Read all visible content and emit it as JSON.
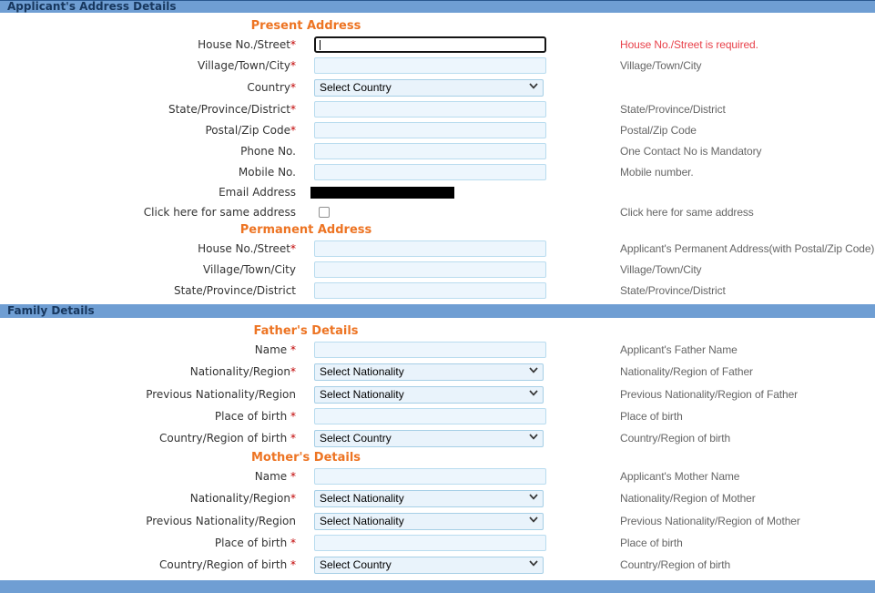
{
  "colors": {
    "section_bar_bg": "#6f9ed3",
    "section_bar_text": "#17375e",
    "sub_heading_orange": "#ed7423",
    "required_star": "#c00000",
    "error_red": "#e8414a",
    "hint_gray": "#666666",
    "input_bg": "#edf6fd",
    "input_border": "#b9dcef"
  },
  "blocks": [
    {
      "kind": "bar",
      "name": "section-bar-address-details",
      "text": "Applicant's Address Details"
    },
    {
      "kind": "heading",
      "name": "present-address-heading",
      "text": "Present Address"
    },
    {
      "kind": "row",
      "name": "house-street",
      "label": "House No./Street",
      "star": "*",
      "control": "text",
      "focused": true,
      "value": "",
      "hint": "House No./Street is required.",
      "hintError": true
    },
    {
      "kind": "row",
      "name": "village-town-city",
      "label": "Village/Town/City",
      "star": "*",
      "control": "text",
      "value": "",
      "hint": "Village/Town/City"
    },
    {
      "kind": "row",
      "name": "country",
      "label": "Country",
      "star": "*",
      "control": "select",
      "value": "Select Country",
      "hint": ""
    },
    {
      "kind": "row",
      "name": "state-province-district",
      "label": "State/Province/District",
      "star": "*",
      "control": "text",
      "value": "",
      "hint": "State/Province/District"
    },
    {
      "kind": "row",
      "name": "postal-zip-code",
      "label": "Postal/Zip Code",
      "star": "*",
      "control": "text",
      "value": "",
      "hint": "Postal/Zip Code"
    },
    {
      "kind": "row",
      "name": "phone-no",
      "label": "Phone No.",
      "star": "",
      "control": "text",
      "value": "",
      "hint": "One Contact No is Mandatory"
    },
    {
      "kind": "row",
      "name": "mobile-no",
      "label": "Mobile No.",
      "star": "",
      "control": "text",
      "value": "",
      "hint": "Mobile number."
    },
    {
      "kind": "row",
      "name": "email-address",
      "label": "Email Address",
      "star": "",
      "control": "redacted",
      "hint": ""
    },
    {
      "kind": "row",
      "name": "same-address",
      "label": "Click here for same address",
      "star": "",
      "control": "checkbox",
      "hint": "Click here for same address"
    },
    {
      "kind": "heading",
      "name": "permanent-address-heading",
      "text": "Permanent Address"
    },
    {
      "kind": "row",
      "name": "perm-house-street",
      "label": "House No./Street",
      "star": "*",
      "control": "text",
      "value": "",
      "hint": "Applicant's Permanent Address(with Postal/Zip Code)"
    },
    {
      "kind": "row",
      "name": "perm-village-town-city",
      "label": "Village/Town/City",
      "star": "",
      "control": "text",
      "value": "",
      "hint": "Village/Town/City"
    },
    {
      "kind": "row",
      "name": "perm-state-province-district",
      "label": "State/Province/District",
      "star": "",
      "control": "text",
      "value": "",
      "hint": "State/Province/District"
    },
    {
      "kind": "bar",
      "name": "section-bar-family-details",
      "text": "Family Details"
    },
    {
      "kind": "heading",
      "name": "fathers-details-heading",
      "text": "Father's Details"
    },
    {
      "kind": "row",
      "name": "father-name",
      "label": "Name",
      "star": " *",
      "control": "text",
      "value": "",
      "hint": "Applicant's Father Name"
    },
    {
      "kind": "row",
      "name": "father-nationality",
      "label": "Nationality/Region",
      "star": "*",
      "control": "select",
      "value": "Select Nationality",
      "hint": "Nationality/Region of Father"
    },
    {
      "kind": "row",
      "name": "father-previous-nationality",
      "label": "Previous Nationality/Region",
      "star": "",
      "control": "select",
      "value": "Select Nationality",
      "hint": "Previous Nationality/Region of Father"
    },
    {
      "kind": "row",
      "name": "father-place-of-birth",
      "label": "Place of birth",
      "star": " *",
      "control": "text",
      "value": "",
      "hint": "Place of birth"
    },
    {
      "kind": "row",
      "name": "father-country-of-birth",
      "label": "Country/Region of birth",
      "star": " *",
      "control": "select",
      "value": "Select Country",
      "hint": "Country/Region of birth"
    },
    {
      "kind": "heading",
      "name": "mothers-details-heading",
      "text": "Mother's Details"
    },
    {
      "kind": "row",
      "name": "mother-name",
      "label": "Name",
      "star": " *",
      "control": "text",
      "value": "",
      "hint": "Applicant's Mother Name"
    },
    {
      "kind": "row",
      "name": "mother-nationality",
      "label": "Nationality/Region",
      "star": "*",
      "control": "select",
      "value": "Select Nationality",
      "hint": "Nationality/Region of Mother"
    },
    {
      "kind": "row",
      "name": "mother-previous-nationality",
      "label": "Previous Nationality/Region",
      "star": "",
      "control": "select",
      "value": "Select Nationality",
      "hint": "Previous Nationality/Region of Mother"
    },
    {
      "kind": "row",
      "name": "mother-place-of-birth",
      "label": "Place of birth",
      "star": " *",
      "control": "text",
      "value": "",
      "hint": "Place of birth"
    },
    {
      "kind": "row",
      "name": "mother-country-of-birth",
      "label": "Country/Region of birth",
      "star": " *",
      "control": "select",
      "value": "Select Country",
      "hint": "Country/Region of birth"
    },
    {
      "kind": "bar",
      "name": "section-bar-bottom",
      "text": ""
    }
  ]
}
